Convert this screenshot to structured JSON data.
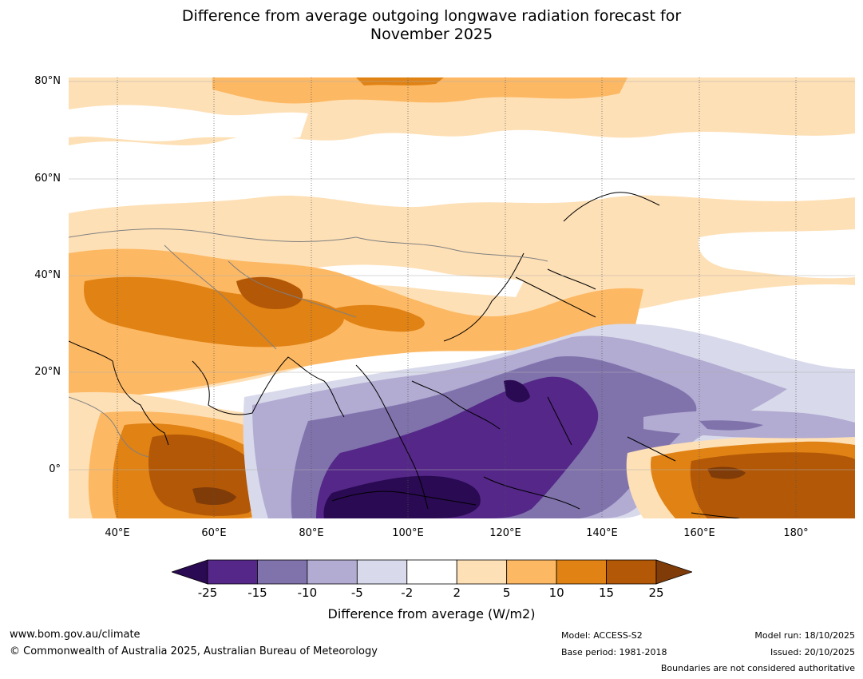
{
  "title_line1": "Difference from average outgoing longwave radiation forecast for",
  "title_line2": "November 2025",
  "map": {
    "lat_ticks": [
      "80°N",
      "60°N",
      "40°N",
      "20°N",
      "0°"
    ],
    "lon_ticks": [
      "40°E",
      "60°E",
      "80°E",
      "100°E",
      "120°E",
      "140°E",
      "160°E",
      "180°"
    ],
    "lon_range": [
      30,
      192
    ],
    "lat_range": [
      -10,
      81
    ]
  },
  "legend": {
    "colors": [
      "#2a0a52",
      "#542788",
      "#8073ac",
      "#b2abd2",
      "#d8daeb",
      "#ffffff",
      "#fee0b6",
      "#fdb863",
      "#e08214",
      "#b35806",
      "#7f3b08"
    ],
    "labels": [
      "-25",
      "-15",
      "-10",
      "-5",
      "-2",
      "2",
      "5",
      "10",
      "15",
      "25"
    ],
    "title": "Difference from average (W/m2)"
  },
  "footer": {
    "website": "www.bom.gov.au/climate",
    "copyright": "© Commonwealth of Australia 2025, Australian Bureau of Meteorology",
    "model": "Model: ACCESS-S2",
    "base_period": "Base period: 1981-2018",
    "model_run": "Model run: 18/10/2025",
    "issued": "Issued: 20/10/2025",
    "disclaimer": "Boundaries are not considered authoritative"
  }
}
